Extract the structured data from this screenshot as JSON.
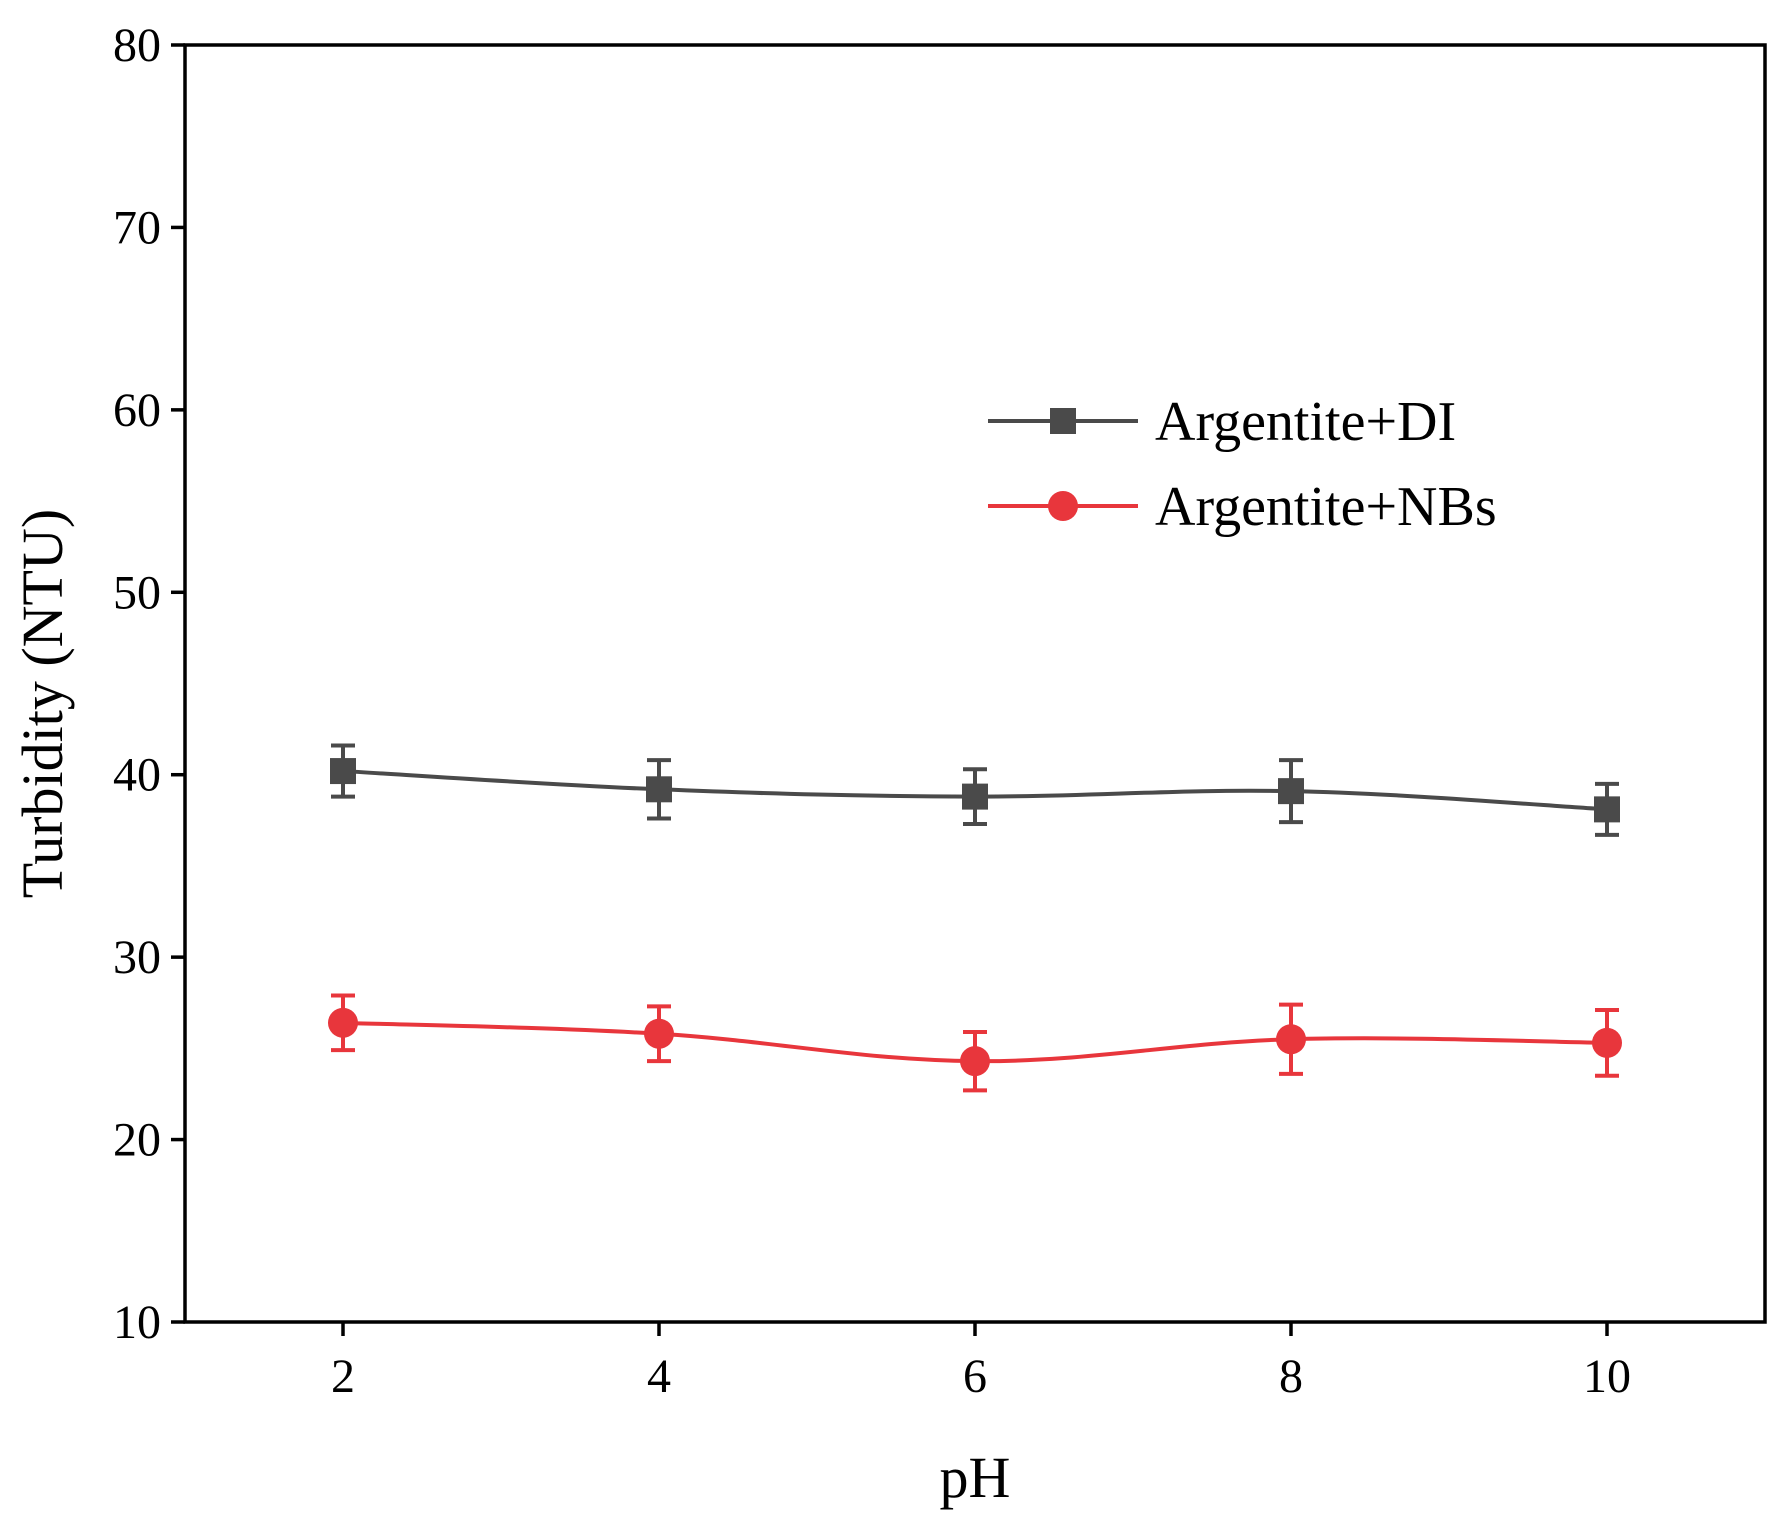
{
  "chart_data": {
    "type": "line",
    "title": "",
    "xlabel": "pH",
    "ylabel": "Turbidity (NTU)",
    "x": [
      2,
      4,
      6,
      8,
      10
    ],
    "xlim": [
      1,
      11
    ],
    "ylim": [
      10,
      80
    ],
    "xticks": [
      2,
      4,
      6,
      8,
      10
    ],
    "yticks": [
      10,
      20,
      30,
      40,
      50,
      60,
      70,
      80
    ],
    "grid": false,
    "legend_position": "upper-right",
    "series": [
      {
        "name": "Argentite+DI",
        "color": "#4a4a4a",
        "marker": "square",
        "values": [
          40.2,
          39.2,
          38.8,
          39.1,
          38.1
        ],
        "errors": [
          1.4,
          1.6,
          1.5,
          1.7,
          1.4
        ]
      },
      {
        "name": "Argentite+NBs",
        "color": "#e8363c",
        "marker": "circle",
        "values": [
          26.4,
          25.8,
          24.3,
          25.5,
          25.3
        ],
        "errors": [
          1.5,
          1.5,
          1.6,
          1.9,
          1.8
        ]
      }
    ]
  }
}
